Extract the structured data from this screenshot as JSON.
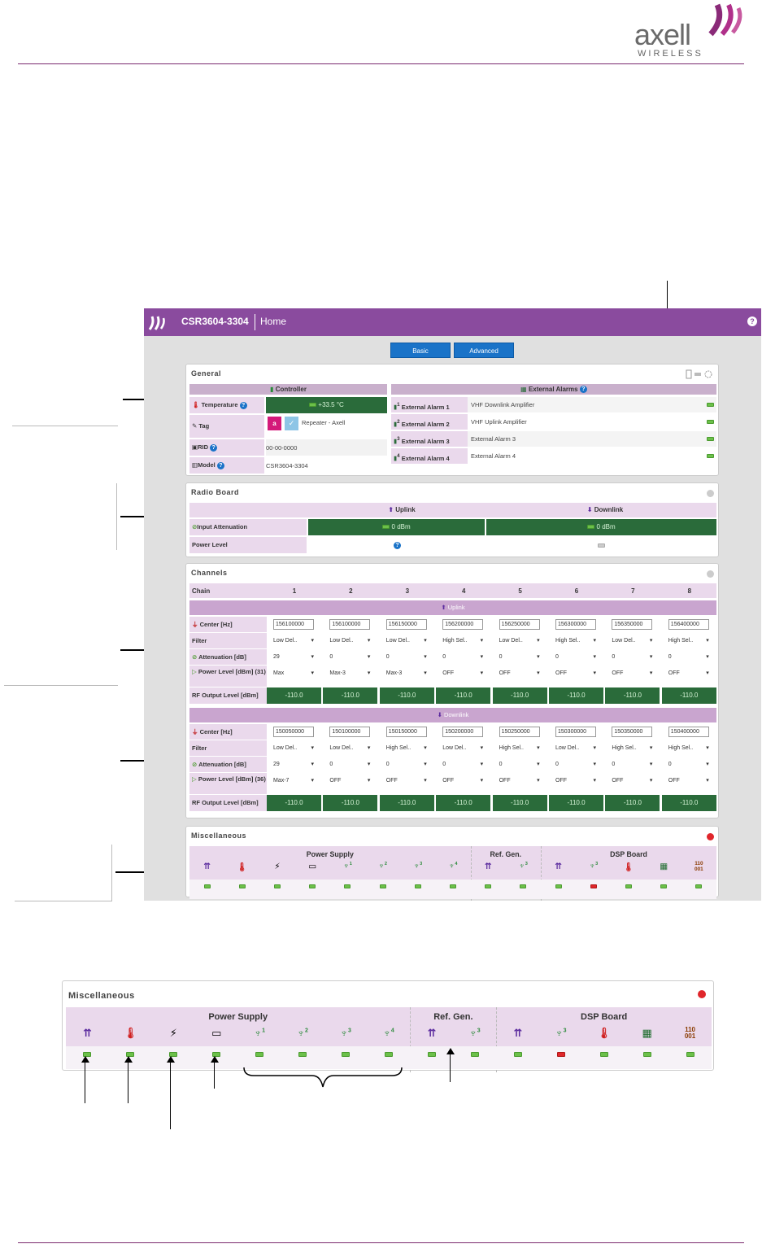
{
  "brand": {
    "word": "axell",
    "sub": "WIRELESS"
  },
  "app": {
    "device": "CSR3604-3304",
    "page": "Home",
    "help": "?"
  },
  "tabs": {
    "basic": "Basic",
    "advanced": "Advanced"
  },
  "general": {
    "title": "General",
    "controller_header": "Controller",
    "alarms_header": "External Alarms",
    "temperature_label": "Temperature",
    "temperature_value": "+33.5 °C",
    "tag_label": "Tag",
    "tag_badge": "a",
    "tag_value": "Repeater - Axell",
    "rid_label": "RID",
    "rid_value": "00-00-0000",
    "model_label": "Model",
    "model_value": "CSR3604-3304",
    "alarms": [
      {
        "label": "External Alarm 1",
        "num": "1",
        "desc": "VHF Downlink Amplifier"
      },
      {
        "label": "External Alarm 2",
        "num": "2",
        "desc": "VHF Uplink Amplifier"
      },
      {
        "label": "External Alarm 3",
        "num": "3",
        "desc": "External Alarm 3"
      },
      {
        "label": "External Alarm 4",
        "num": "4",
        "desc": "External Alarm 4"
      }
    ]
  },
  "radio": {
    "title": "Radio Board",
    "uplink": "Uplink",
    "downlink": "Downlink",
    "input_att_label": "Input Attenuation",
    "uplink_att": "0 dBm",
    "downlink_att": "0 dBm",
    "power_label": "Power Level"
  },
  "channels": {
    "title": "Channels",
    "chain_label": "Chain",
    "chains": [
      "1",
      "2",
      "3",
      "4",
      "5",
      "6",
      "7",
      "8"
    ],
    "uplink_header": "Uplink",
    "downlink_header": "Downlink",
    "center_label": "Center [Hz]",
    "filter_label": "Filter",
    "att_label": "Attenuation [dB]",
    "uplink_power_label": "Power Level [dBm] (31)",
    "downlink_power_label": "Power Level [dBm] (36)",
    "rf_label": "RF Output Level [dBm]",
    "uplink_center": [
      "156100000",
      "156100000",
      "156150000",
      "156200000",
      "156250000",
      "156300000",
      "156350000",
      "156400000"
    ],
    "uplink_filter": [
      "Low Del..",
      "Low Del..",
      "Low Del..",
      "High Sel..",
      "Low Del..",
      "High Sel..",
      "Low Del..",
      "High Sel.."
    ],
    "uplink_att": [
      "29",
      "0",
      "0",
      "0",
      "0",
      "0",
      "0",
      "0"
    ],
    "uplink_power": [
      "Max",
      "Max-3",
      "Max-3",
      "OFF",
      "OFF",
      "OFF",
      "OFF",
      "OFF"
    ],
    "uplink_rf": [
      "-110.0",
      "-110.0",
      "-110.0",
      "-110.0",
      "-110.0",
      "-110.0",
      "-110.0",
      "-110.0"
    ],
    "downlink_center": [
      "150050000",
      "150100000",
      "150150000",
      "150200000",
      "150250000",
      "150300000",
      "150350000",
      "150400000"
    ],
    "downlink_filter": [
      "Low Del..",
      "Low Del..",
      "High Sel..",
      "Low Del..",
      "High Sel..",
      "Low Del..",
      "High Sel..",
      "High Sel.."
    ],
    "downlink_att": [
      "29",
      "0",
      "0",
      "0",
      "0",
      "0",
      "0",
      "0"
    ],
    "downlink_power": [
      "Max-7",
      "OFF",
      "OFF",
      "OFF",
      "OFF",
      "OFF",
      "OFF",
      "OFF"
    ],
    "downlink_rf": [
      "-110.0",
      "-110.0",
      "-110.0",
      "-110.0",
      "-110.0",
      "-110.0",
      "-110.0",
      "-110.0"
    ]
  },
  "misc": {
    "title": "Miscellaneous",
    "power_supply": "Power Supply",
    "ref_gen": "Ref. Gen.",
    "dsp_board": "DSP Board",
    "ps_nums": [
      "1",
      "2",
      "3",
      "4"
    ],
    "ref_num": "3",
    "dsp_num": "3",
    "binary": "110\n001",
    "status": [
      "ok",
      "ok",
      "ok",
      "ok",
      "ok",
      "ok",
      "ok",
      "ok",
      "ok",
      "ok",
      "ok",
      "fault",
      "ok",
      "ok",
      "ok"
    ]
  },
  "colors": {
    "brand_purple": "#8a4b9e",
    "ok_green": "#6cc04a",
    "fault_red": "#e0262b",
    "value_green": "#2a6b3a"
  }
}
